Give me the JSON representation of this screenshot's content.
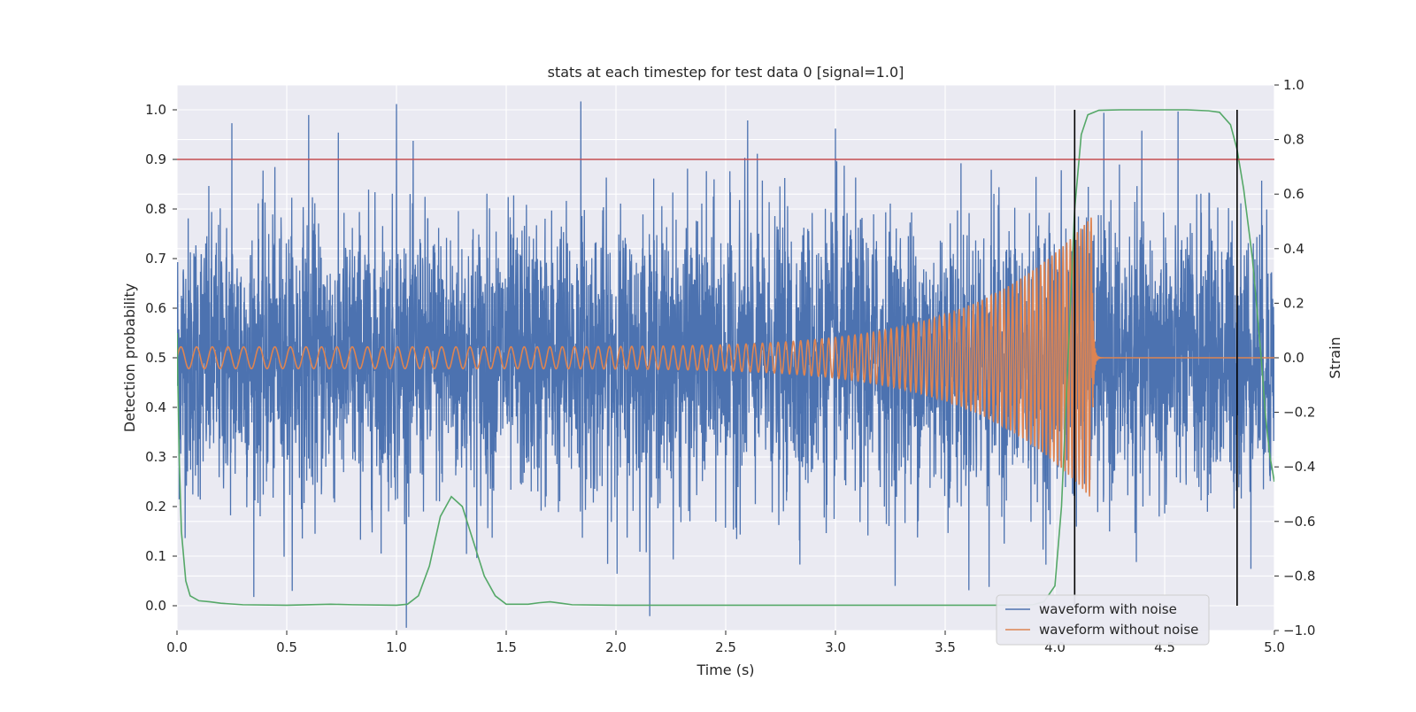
{
  "chart_data": {
    "type": "line",
    "title": "stats at each timestep for test data 0 [signal=1.0]",
    "xlabel": "Time (s)",
    "ylabel": "Detection probability",
    "y2label": "Strain",
    "xlim": [
      0.0,
      5.0
    ],
    "ylim": [
      -0.05,
      1.05
    ],
    "y2lim": [
      -1.0,
      1.0
    ],
    "grid": true,
    "legend_placement": "lower-right",
    "x_ticks": [
      "0.0",
      "0.5",
      "1.0",
      "1.5",
      "2.0",
      "2.5",
      "3.0",
      "3.5",
      "4.0",
      "4.5",
      "5.0"
    ],
    "y_ticks": [
      "0.0",
      "0.1",
      "0.2",
      "0.3",
      "0.4",
      "0.5",
      "0.6",
      "0.7",
      "0.8",
      "0.9",
      "1.0"
    ],
    "y2_ticks": [
      "−1.0",
      "−0.8",
      "−0.6",
      "−0.4",
      "−0.2",
      "0.0",
      "0.2",
      "0.4",
      "0.6",
      "0.8",
      "1.0"
    ],
    "series": [
      {
        "name": "waveform with noise",
        "axis": "right",
        "color": "#4c72b0",
        "kind": "noisy-strain",
        "noise_amplitude_envelope": [
          -0.6,
          0.6
        ],
        "peak_excursions": {
          "x": [
            0.25,
            0.6,
            1.0,
            1.84,
            2.6,
            3.0,
            3.7
          ],
          "y": [
            0.86,
            0.89,
            0.93,
            0.94,
            0.87,
            0.84,
            -0.84
          ]
        }
      },
      {
        "name": "waveform without noise",
        "axis": "right",
        "color": "#dd8452",
        "kind": "chirp",
        "x_start": 0.0,
        "x_merger": 4.17,
        "initial_amplitude": 0.04,
        "peak_amplitude": 0.52,
        "start_frequency_hz": 14,
        "end_frequency_hz": 65
      },
      {
        "axis": "left",
        "color": "#55a868",
        "x": [
          0.0,
          0.01,
          0.02,
          0.04,
          0.06,
          0.1,
          0.15,
          0.2,
          0.3,
          0.5,
          0.7,
          0.8,
          1.0,
          1.05,
          1.1,
          1.15,
          1.2,
          1.25,
          1.3,
          1.35,
          1.4,
          1.45,
          1.5,
          1.6,
          1.65,
          1.7,
          1.75,
          1.8,
          2.0,
          2.5,
          3.0,
          3.5,
          3.8,
          3.9,
          3.95,
          4.0,
          4.03,
          4.06,
          4.09,
          4.12,
          4.15,
          4.2,
          4.3,
          4.6,
          4.7,
          4.75,
          4.8,
          4.83,
          4.86,
          4.9,
          4.94,
          4.96,
          4.98,
          5.0
        ],
        "y": [
          0.55,
          0.3,
          0.15,
          0.05,
          0.02,
          0.01,
          0.008,
          0.005,
          0.002,
          0.001,
          0.003,
          0.002,
          0.001,
          0.003,
          0.02,
          0.08,
          0.18,
          0.22,
          0.2,
          0.13,
          0.06,
          0.02,
          0.003,
          0.003,
          0.006,
          0.008,
          0.005,
          0.002,
          0.001,
          0.001,
          0.001,
          0.001,
          0.001,
          0.002,
          0.008,
          0.04,
          0.2,
          0.5,
          0.8,
          0.95,
          0.99,
          0.999,
          1.0,
          1.0,
          0.998,
          0.995,
          0.97,
          0.92,
          0.84,
          0.7,
          0.5,
          0.38,
          0.3,
          0.25
        ]
      }
    ],
    "threshold": {
      "y": 0.9,
      "color": "#c44e52"
    },
    "event_markers": {
      "x": [
        4.09,
        4.83
      ],
      "color": "#000000"
    }
  }
}
